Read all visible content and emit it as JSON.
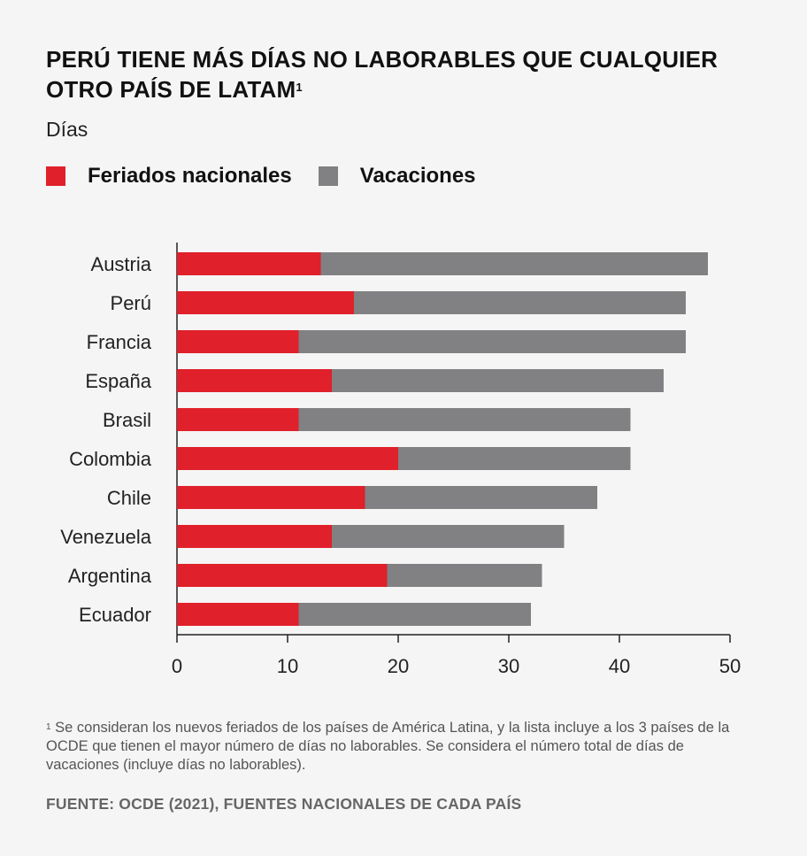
{
  "chart_data": {
    "type": "bar",
    "orientation": "horizontal",
    "stacked": true,
    "title": "PERÚ TIENE MÁS DÍAS NO LABORABLES QUE CUALQUIER OTRO PAÍS DE LATAM",
    "title_footnote_mark": "1",
    "units_label": "Días",
    "categories": [
      "Austria",
      "Perú",
      "Francia",
      "España",
      "Brasil",
      "Colombia",
      "Chile",
      "Venezuela",
      "Argentina",
      "Ecuador"
    ],
    "series": [
      {
        "name": "Feriados nacionales",
        "color": "#e0202a",
        "values": [
          13,
          16,
          11,
          14,
          11,
          20,
          17,
          14,
          19,
          11
        ]
      },
      {
        "name": "Vacaciones",
        "color": "#818183",
        "values": [
          35,
          30,
          35,
          30,
          30,
          21,
          21,
          21,
          14,
          21
        ]
      }
    ],
    "xlim": [
      0,
      50
    ],
    "x_ticks": [
      0,
      10,
      20,
      30,
      40,
      50
    ],
    "x_tick_labels": [
      "0",
      "10",
      "20",
      "30",
      "40",
      "50"
    ],
    "grid": false,
    "legend_position": "top-left"
  },
  "footnote": {
    "mark": "1",
    "text": " Se consideran los nuevos feriados de los países de América Latina, y la lista incluye a los 3 países de la OCDE que tienen el mayor número de días no laborables. Se considera el número total de días de vacaciones (incluye días no laborables)."
  },
  "source": "FUENTE: OCDE (2021), FUENTES NACIONALES DE CADA PAÍS"
}
